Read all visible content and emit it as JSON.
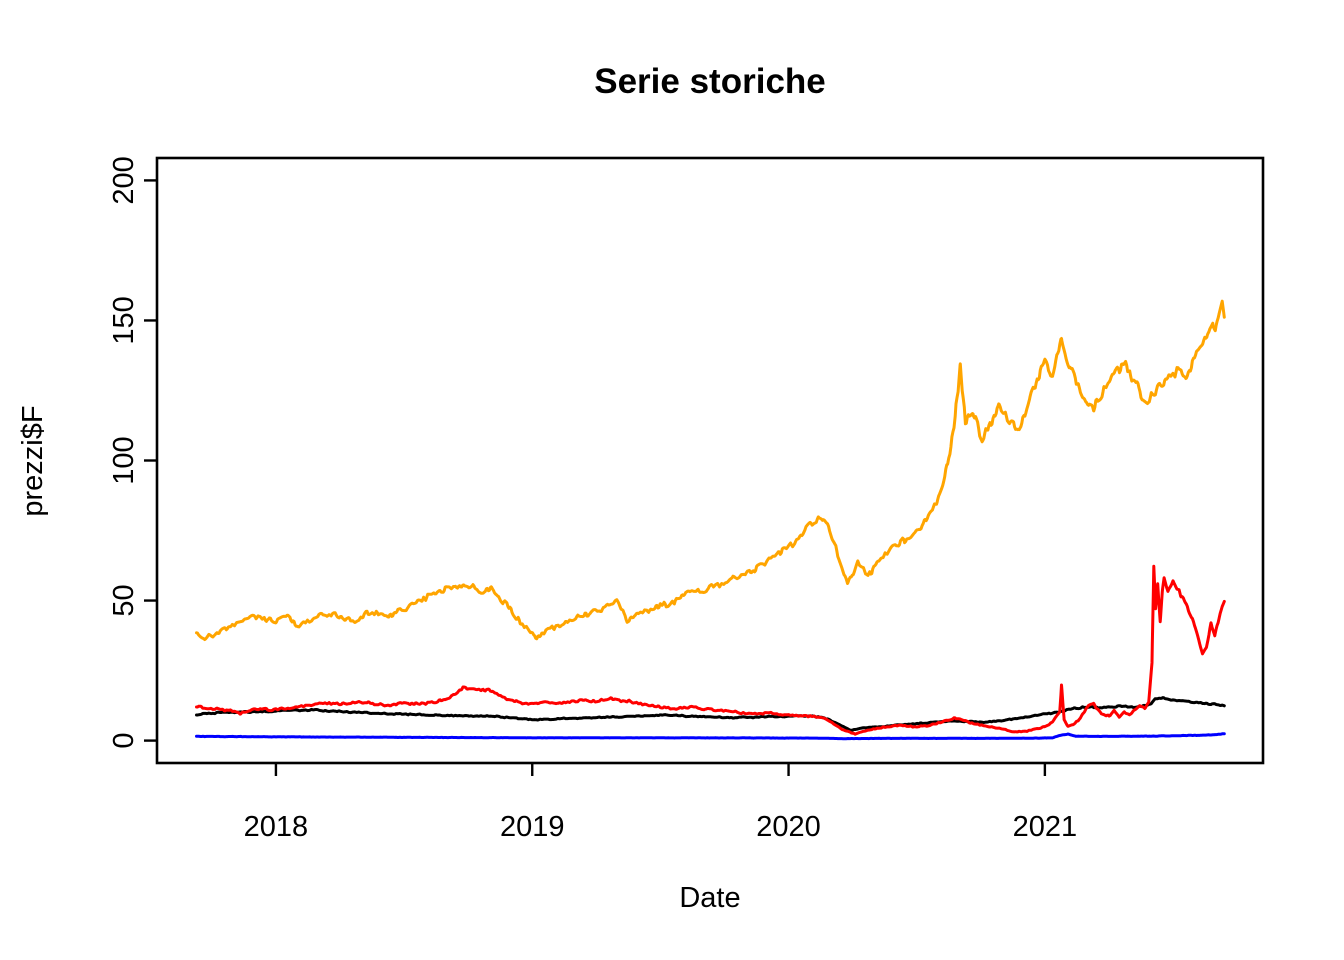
{
  "chart_data": {
    "type": "line",
    "title": "Serie storiche",
    "xlabel": "Date",
    "ylabel": "prezzi$F",
    "x_unit": "decimal_year",
    "xlim": [
      2017.536,
      2021.851
    ],
    "ylim": [
      -8,
      208
    ],
    "x_ticks": [
      2018,
      2019,
      2020,
      2021
    ],
    "x_tick_labels": [
      "2018",
      "2019",
      "2020",
      "2021"
    ],
    "y_ticks": [
      0,
      50,
      100,
      150,
      200
    ],
    "y_tick_labels": [
      "0",
      "50",
      "100",
      "150",
      "200"
    ],
    "grid": false,
    "legend": "none",
    "background": "#ffffff",
    "axis_color": "#000000",
    "series": [
      {
        "name": "black-series",
        "color": "#000000",
        "jitter": 0.3,
        "jitter_ref": 10,
        "points": [
          [
            2017.69,
            9.3
          ],
          [
            2017.78,
            9.9
          ],
          [
            2017.87,
            10.2
          ],
          [
            2017.96,
            10.4
          ],
          [
            2018.05,
            10.8
          ],
          [
            2018.14,
            10.9
          ],
          [
            2018.23,
            10.5
          ],
          [
            2018.32,
            10.1
          ],
          [
            2018.41,
            9.7
          ],
          [
            2018.5,
            9.4
          ],
          [
            2018.59,
            9.2
          ],
          [
            2018.68,
            8.9
          ],
          [
            2018.77,
            8.8
          ],
          [
            2018.86,
            8.6
          ],
          [
            2018.95,
            7.9
          ],
          [
            2019.02,
            7.4
          ],
          [
            2019.1,
            7.8
          ],
          [
            2019.19,
            8.1
          ],
          [
            2019.28,
            8.3
          ],
          [
            2019.37,
            8.6
          ],
          [
            2019.46,
            8.8
          ],
          [
            2019.52,
            9.2
          ],
          [
            2019.6,
            8.8
          ],
          [
            2019.7,
            8.4
          ],
          [
            2019.8,
            8.2
          ],
          [
            2019.9,
            8.5
          ],
          [
            2020.0,
            8.7
          ],
          [
            2020.07,
            8.9
          ],
          [
            2020.13,
            8.4
          ],
          [
            2020.18,
            6.5
          ],
          [
            2020.24,
            3.7
          ],
          [
            2020.3,
            4.6
          ],
          [
            2020.37,
            5.1
          ],
          [
            2020.44,
            5.7
          ],
          [
            2020.51,
            6.1
          ],
          [
            2020.58,
            6.6
          ],
          [
            2020.64,
            7.0
          ],
          [
            2020.7,
            6.8
          ],
          [
            2020.76,
            6.6
          ],
          [
            2020.82,
            7.0
          ],
          [
            2020.88,
            7.7
          ],
          [
            2020.94,
            8.5
          ],
          [
            2021.0,
            9.6
          ],
          [
            2021.06,
            10.3
          ],
          [
            2021.1,
            11.3
          ],
          [
            2021.14,
            11.8
          ],
          [
            2021.18,
            12.0
          ],
          [
            2021.22,
            11.7
          ],
          [
            2021.26,
            12.0
          ],
          [
            2021.3,
            12.2
          ],
          [
            2021.34,
            12.0
          ],
          [
            2021.38,
            12.3
          ],
          [
            2021.41,
            12.9
          ],
          [
            2021.43,
            14.8
          ],
          [
            2021.46,
            15.1
          ],
          [
            2021.5,
            14.4
          ],
          [
            2021.54,
            14.1
          ],
          [
            2021.58,
            13.8
          ],
          [
            2021.62,
            13.4
          ],
          [
            2021.66,
            13.0
          ],
          [
            2021.7,
            12.5
          ]
        ]
      },
      {
        "name": "blue-series",
        "color": "#0000FF",
        "jitter": 0.07,
        "jitter_ref": 1.2,
        "points": [
          [
            2017.69,
            1.5
          ],
          [
            2017.9,
            1.4
          ],
          [
            2018.1,
            1.3
          ],
          [
            2018.4,
            1.2
          ],
          [
            2018.7,
            1.1
          ],
          [
            2019.0,
            1.0
          ],
          [
            2019.4,
            1.0
          ],
          [
            2019.8,
            0.95
          ],
          [
            2020.1,
            0.9
          ],
          [
            2020.22,
            0.7
          ],
          [
            2020.4,
            0.8
          ],
          [
            2020.7,
            0.8
          ],
          [
            2020.95,
            0.85
          ],
          [
            2021.03,
            1.0
          ],
          [
            2021.06,
            1.9
          ],
          [
            2021.09,
            2.3
          ],
          [
            2021.12,
            1.6
          ],
          [
            2021.2,
            1.5
          ],
          [
            2021.35,
            1.55
          ],
          [
            2021.5,
            1.7
          ],
          [
            2021.6,
            1.9
          ],
          [
            2021.66,
            2.1
          ],
          [
            2021.7,
            2.5
          ]
        ]
      },
      {
        "name": "red-series",
        "color": "#FF0000",
        "jitter": 0.55,
        "jitter_ref": 12,
        "points": [
          [
            2017.69,
            12.2
          ],
          [
            2017.74,
            11.5
          ],
          [
            2017.8,
            11.0
          ],
          [
            2017.86,
            9.8
          ],
          [
            2017.92,
            11.3
          ],
          [
            2018.0,
            11.0
          ],
          [
            2018.06,
            11.6
          ],
          [
            2018.12,
            12.5
          ],
          [
            2018.19,
            13.6
          ],
          [
            2018.25,
            13.0
          ],
          [
            2018.31,
            13.8
          ],
          [
            2018.38,
            13.2
          ],
          [
            2018.44,
            12.6
          ],
          [
            2018.5,
            13.5
          ],
          [
            2018.56,
            12.9
          ],
          [
            2018.62,
            13.6
          ],
          [
            2018.68,
            15.5
          ],
          [
            2018.73,
            18.8
          ],
          [
            2018.78,
            17.8
          ],
          [
            2018.83,
            18.2
          ],
          [
            2018.88,
            15.5
          ],
          [
            2018.94,
            13.8
          ],
          [
            2019.0,
            13.2
          ],
          [
            2019.06,
            13.9
          ],
          [
            2019.12,
            13.4
          ],
          [
            2019.18,
            14.3
          ],
          [
            2019.24,
            13.9
          ],
          [
            2019.3,
            14.8
          ],
          [
            2019.36,
            14.2
          ],
          [
            2019.42,
            13.2
          ],
          [
            2019.48,
            12.3
          ],
          [
            2019.55,
            11.6
          ],
          [
            2019.62,
            11.9
          ],
          [
            2019.7,
            11.1
          ],
          [
            2019.78,
            10.4
          ],
          [
            2019.85,
            9.6
          ],
          [
            2019.92,
            9.9
          ],
          [
            2020.0,
            9.2
          ],
          [
            2020.06,
            8.9
          ],
          [
            2020.12,
            8.4
          ],
          [
            2020.16,
            7.0
          ],
          [
            2020.21,
            4.0
          ],
          [
            2020.26,
            2.3
          ],
          [
            2020.31,
            3.8
          ],
          [
            2020.36,
            4.6
          ],
          [
            2020.42,
            5.4
          ],
          [
            2020.48,
            5.0
          ],
          [
            2020.54,
            5.3
          ],
          [
            2020.6,
            6.6
          ],
          [
            2020.65,
            8.2
          ],
          [
            2020.7,
            6.6
          ],
          [
            2020.76,
            5.3
          ],
          [
            2020.82,
            4.4
          ],
          [
            2020.88,
            3.1
          ],
          [
            2020.93,
            3.4
          ],
          [
            2020.98,
            4.4
          ],
          [
            2021.03,
            6.5
          ],
          [
            2021.058,
            10.0
          ],
          [
            2021.065,
            19.8
          ],
          [
            2021.075,
            7.5
          ],
          [
            2021.09,
            5.2
          ],
          [
            2021.11,
            5.6
          ],
          [
            2021.13,
            7.0
          ],
          [
            2021.17,
            12.5
          ],
          [
            2021.19,
            13.2
          ],
          [
            2021.22,
            9.5
          ],
          [
            2021.25,
            8.6
          ],
          [
            2021.27,
            10.8
          ],
          [
            2021.29,
            8.4
          ],
          [
            2021.31,
            10.2
          ],
          [
            2021.33,
            9.0
          ],
          [
            2021.35,
            11.0
          ],
          [
            2021.37,
            12.6
          ],
          [
            2021.39,
            11.5
          ],
          [
            2021.405,
            13.5
          ],
          [
            2021.418,
            28.0
          ],
          [
            2021.425,
            62.4
          ],
          [
            2021.432,
            47.0
          ],
          [
            2021.44,
            56.0
          ],
          [
            2021.45,
            42.5
          ],
          [
            2021.458,
            53.0
          ],
          [
            2021.465,
            58.0
          ],
          [
            2021.48,
            53.5
          ],
          [
            2021.5,
            57.0
          ],
          [
            2021.53,
            52.0
          ],
          [
            2021.56,
            47.0
          ],
          [
            2021.585,
            41.0
          ],
          [
            2021.6,
            36.0
          ],
          [
            2021.615,
            30.8
          ],
          [
            2021.63,
            34.0
          ],
          [
            2021.648,
            42.0
          ],
          [
            2021.663,
            37.0
          ],
          [
            2021.68,
            44.0
          ],
          [
            2021.7,
            50.0
          ]
        ]
      },
      {
        "name": "orange-series",
        "color": "#FFA500",
        "jitter": 1.4,
        "jitter_ref": 45,
        "points": [
          [
            2017.69,
            38.0
          ],
          [
            2017.73,
            36.5
          ],
          [
            2017.8,
            40.0
          ],
          [
            2017.87,
            42.5
          ],
          [
            2017.93,
            44.2
          ],
          [
            2018.0,
            42.5
          ],
          [
            2018.04,
            44.5
          ],
          [
            2018.09,
            40.8
          ],
          [
            2018.15,
            44.0
          ],
          [
            2018.22,
            45.2
          ],
          [
            2018.3,
            42.6
          ],
          [
            2018.37,
            46.0
          ],
          [
            2018.44,
            44.2
          ],
          [
            2018.5,
            47.5
          ],
          [
            2018.57,
            50.5
          ],
          [
            2018.64,
            53.5
          ],
          [
            2018.7,
            54.8
          ],
          [
            2018.76,
            55.6
          ],
          [
            2018.8,
            52.8
          ],
          [
            2018.84,
            54.0
          ],
          [
            2018.9,
            48.5
          ],
          [
            2018.96,
            41.5
          ],
          [
            2019.02,
            36.6
          ],
          [
            2019.08,
            40.0
          ],
          [
            2019.15,
            43.0
          ],
          [
            2019.22,
            45.5
          ],
          [
            2019.28,
            47.5
          ],
          [
            2019.33,
            50.5
          ],
          [
            2019.37,
            42.8
          ],
          [
            2019.43,
            46.0
          ],
          [
            2019.5,
            48.0
          ],
          [
            2019.58,
            51.0
          ],
          [
            2019.66,
            53.8
          ],
          [
            2019.74,
            56.0
          ],
          [
            2019.82,
            59.0
          ],
          [
            2019.9,
            63.0
          ],
          [
            2019.96,
            66.5
          ],
          [
            2020.02,
            71.0
          ],
          [
            2020.08,
            77.0
          ],
          [
            2020.13,
            80.5
          ],
          [
            2020.17,
            73.0
          ],
          [
            2020.2,
            65.0
          ],
          [
            2020.23,
            55.5
          ],
          [
            2020.27,
            64.0
          ],
          [
            2020.31,
            58.5
          ],
          [
            2020.36,
            65.0
          ],
          [
            2020.42,
            70.0
          ],
          [
            2020.48,
            74.0
          ],
          [
            2020.53,
            78.0
          ],
          [
            2020.58,
            86.0
          ],
          [
            2020.62,
            98.0
          ],
          [
            2020.65,
            116.0
          ],
          [
            2020.67,
            133.5
          ],
          [
            2020.69,
            114.0
          ],
          [
            2020.72,
            118.0
          ],
          [
            2020.755,
            107.0
          ],
          [
            2020.79,
            113.0
          ],
          [
            2020.82,
            119.5
          ],
          [
            2020.86,
            115.0
          ],
          [
            2020.9,
            111.5
          ],
          [
            2020.94,
            122.0
          ],
          [
            2020.97,
            128.0
          ],
          [
            2021.0,
            135.0
          ],
          [
            2021.03,
            131.0
          ],
          [
            2021.065,
            142.5
          ],
          [
            2021.1,
            133.0
          ],
          [
            2021.13,
            127.0
          ],
          [
            2021.16,
            122.5
          ],
          [
            2021.19,
            118.5
          ],
          [
            2021.23,
            126.0
          ],
          [
            2021.28,
            133.5
          ],
          [
            2021.32,
            134.0
          ],
          [
            2021.36,
            126.5
          ],
          [
            2021.4,
            121.0
          ],
          [
            2021.44,
            126.0
          ],
          [
            2021.48,
            129.5
          ],
          [
            2021.52,
            132.0
          ],
          [
            2021.55,
            130.0
          ],
          [
            2021.58,
            136.0
          ],
          [
            2021.61,
            140.0
          ],
          [
            2021.635,
            145.5
          ],
          [
            2021.655,
            147.5
          ],
          [
            2021.665,
            145.5
          ],
          [
            2021.68,
            152.0
          ],
          [
            2021.692,
            156.5
          ],
          [
            2021.7,
            150.5
          ]
        ]
      }
    ]
  }
}
